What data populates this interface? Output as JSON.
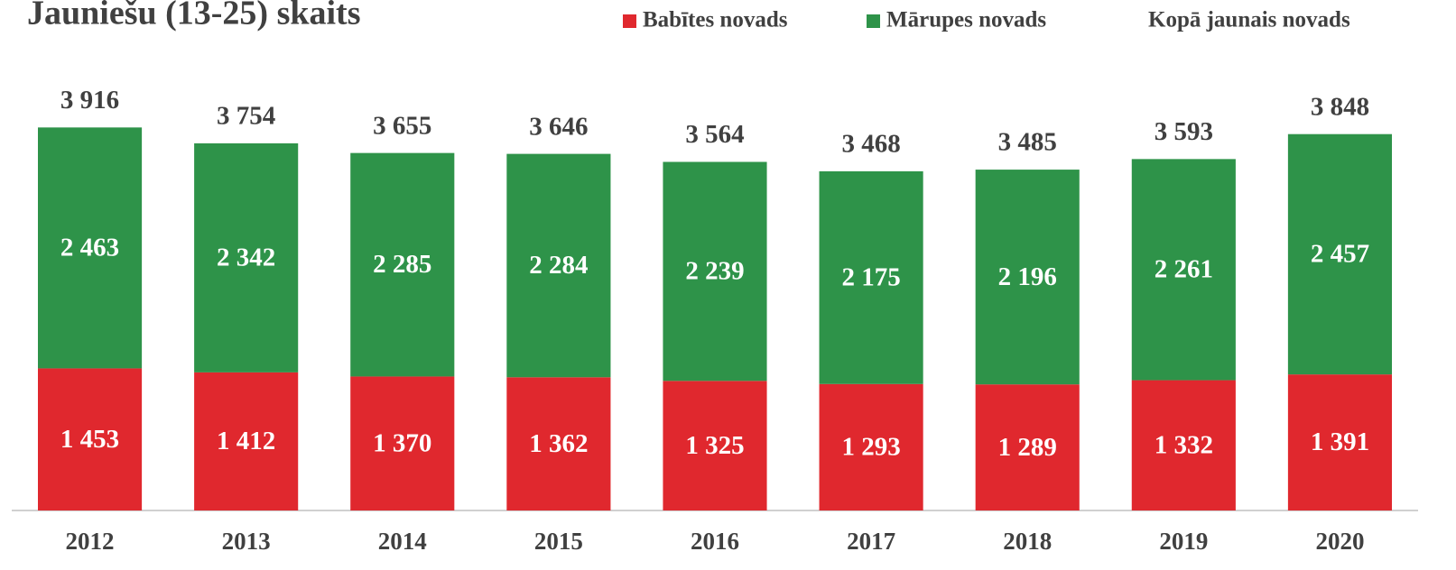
{
  "chart_data": {
    "type": "stacked_bar",
    "title": "Jauniešu (13-25) skaits",
    "categories": [
      "2012",
      "2013",
      "2014",
      "2015",
      "2016",
      "2017",
      "2018",
      "2019",
      "2020"
    ],
    "series": [
      {
        "name": "Babītes novads",
        "color": "#e0282e",
        "values": [
          1453,
          1412,
          1370,
          1362,
          1325,
          1293,
          1289,
          1332,
          1391
        ],
        "value_labels": [
          "1 453",
          "1 412",
          "1 370",
          "1 362",
          "1 325",
          "1 293",
          "1 289",
          "1 332",
          "1 391"
        ]
      },
      {
        "name": "Mārupes novads",
        "color": "#2e9349",
        "values": [
          2463,
          2342,
          2285,
          2284,
          2239,
          2175,
          2196,
          2261,
          2457
        ],
        "value_labels": [
          "2 463",
          "2 342",
          "2 285",
          "2 284",
          "2 239",
          "2 175",
          "2 196",
          "2 261",
          "2 457"
        ]
      }
    ],
    "total": {
      "name": "Kopā jaunais novads",
      "values": [
        3916,
        3754,
        3655,
        3646,
        3564,
        3468,
        3485,
        3593,
        3848
      ],
      "value_labels": [
        "3 916",
        "3 754",
        "3 655",
        "3 646",
        "3 564",
        "3 468",
        "3 485",
        "3 593",
        "3 848"
      ]
    },
    "ylim": [
      0,
      4500
    ]
  }
}
